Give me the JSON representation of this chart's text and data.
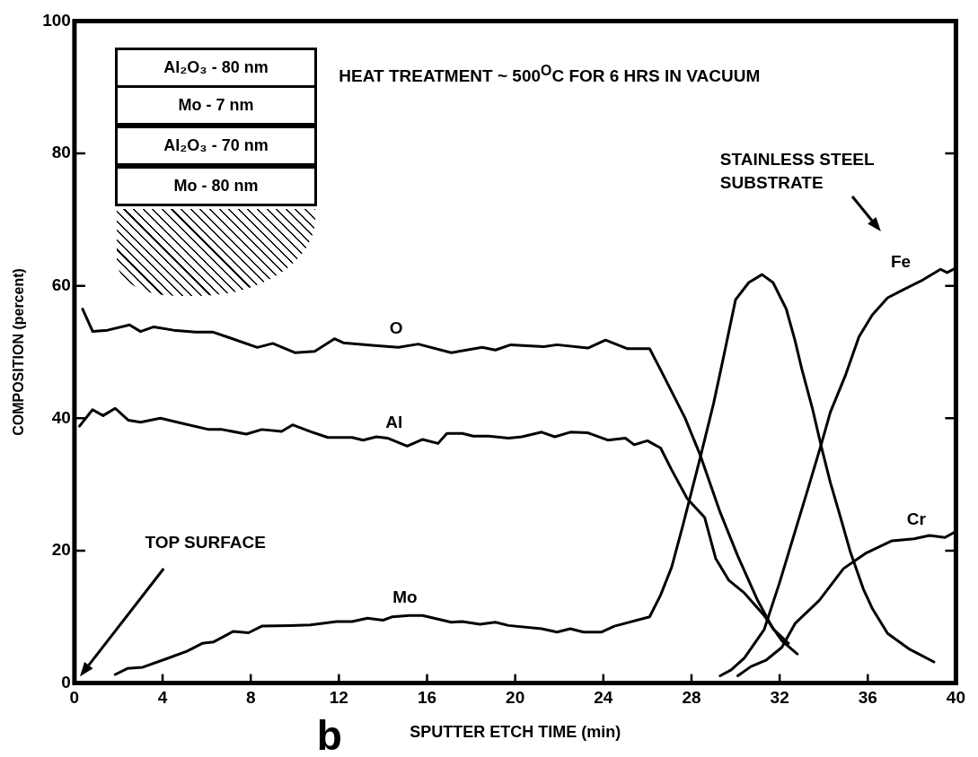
{
  "chart_data": {
    "type": "line",
    "xlabel": "SPUTTER ETCH TIME (min)",
    "ylabel": "COMPOSITION (percent)",
    "xlim": [
      0,
      40
    ],
    "ylim": [
      0,
      100
    ],
    "xticks": [
      0,
      4,
      8,
      12,
      16,
      20,
      24,
      28,
      32,
      36,
      40
    ],
    "yticks": [
      0,
      20,
      40,
      60,
      80,
      100
    ],
    "legend": false,
    "marker": "none",
    "line_style": "solid",
    "annotations": [
      "Al₂O₃ - 80 nm",
      "Mo - 7 nm",
      "Al₂O₃ - 70 nm",
      "Mo - 80 nm",
      "HEAT TREATMENT ~ 500$^{O}$C FOR 6 HRS IN VACUUM",
      "STAINLESS STEEL SUBSTRATE",
      "TOP SURFACE",
      "b"
    ],
    "series": [
      {
        "name": "O",
        "color": "#000000",
        "x": [
          0.37,
          0.83,
          1.5,
          2.5,
          3.0,
          3.6,
          4.5,
          5.5,
          6.3,
          7.0,
          8.3,
          9.0,
          10.0,
          10.9,
          11.8,
          12.2,
          13.5,
          14.7,
          15.6,
          17.1,
          18.5,
          19.1,
          19.8,
          21.3,
          21.9,
          23.3,
          24.1,
          25.1,
          26.1,
          26.6,
          27.7,
          28.4,
          29.3,
          30.1,
          31.0,
          31.7,
          32.4
        ],
        "values": [
          56.5,
          53.1,
          53.3,
          54.1,
          53.1,
          53.8,
          53.3,
          53.0,
          53.0,
          52.2,
          50.7,
          51.3,
          49.9,
          50.1,
          52.0,
          51.4,
          51.0,
          50.7,
          51.2,
          49.9,
          50.7,
          50.3,
          51.1,
          50.8,
          51.1,
          50.6,
          51.8,
          50.5,
          50.5,
          47.3,
          40.1,
          34.4,
          25.8,
          19.2,
          12.5,
          8.2,
          6.0
        ]
      },
      {
        "name": "Al",
        "color": "#000000",
        "x": [
          0.23,
          0.82,
          1.3,
          1.85,
          2.45,
          3.0,
          3.9,
          4.8,
          6.1,
          6.7,
          7.8,
          8.5,
          9.4,
          9.9,
          10.7,
          11.5,
          12.6,
          13.1,
          13.7,
          14.2,
          15.1,
          15.8,
          16.5,
          16.9,
          17.6,
          18.1,
          18.8,
          19.7,
          20.3,
          21.2,
          21.8,
          22.5,
          23.3,
          24.2,
          25.0,
          25.4,
          26.0,
          26.6,
          27.1,
          27.8,
          28.6,
          29.1,
          29.7,
          30.4,
          31.3,
          32.1,
          32.8
        ],
        "values": [
          38.8,
          41.3,
          40.4,
          41.5,
          39.7,
          39.4,
          40.0,
          39.3,
          38.3,
          38.3,
          37.6,
          38.3,
          38.0,
          39.0,
          38.0,
          37.1,
          37.1,
          36.7,
          37.2,
          37.0,
          35.8,
          36.8,
          36.2,
          37.7,
          37.7,
          37.3,
          37.3,
          37.0,
          37.2,
          37.9,
          37.2,
          37.9,
          37.8,
          36.7,
          37.0,
          36.0,
          36.6,
          35.5,
          32.2,
          27.9,
          25.0,
          18.8,
          15.5,
          13.6,
          10.2,
          6.4,
          4.4
        ]
      },
      {
        "name": "Mo",
        "color": "#000000",
        "x": [
          1.85,
          2.4,
          3.1,
          4.2,
          5.1,
          5.8,
          6.3,
          7.2,
          7.9,
          8.5,
          9.8,
          10.7,
          11.9,
          12.6,
          13.3,
          14.0,
          14.4,
          15.2,
          15.8,
          17.1,
          17.6,
          18.4,
          19.1,
          19.7,
          21.2,
          21.9,
          22.5,
          23.1,
          23.9,
          24.5,
          26.1,
          26.6,
          27.1,
          27.6,
          28.4,
          29.0,
          29.4,
          30.0,
          30.6,
          31.2,
          31.7,
          32.3,
          32.7,
          33.0,
          33.5,
          33.9,
          34.3,
          34.8,
          35.2,
          35.8,
          36.2,
          36.9,
          37.9,
          39.0
        ],
        "values": [
          1.3,
          2.2,
          2.4,
          3.7,
          4.8,
          6.0,
          6.2,
          7.8,
          7.6,
          8.6,
          8.7,
          8.8,
          9.3,
          9.3,
          9.8,
          9.5,
          10.0,
          10.2,
          10.2,
          9.2,
          9.3,
          8.9,
          9.2,
          8.7,
          8.2,
          7.7,
          8.2,
          7.7,
          7.7,
          8.6,
          10.0,
          13.3,
          17.5,
          23.7,
          34.1,
          42.2,
          48.4,
          57.9,
          60.5,
          61.7,
          60.5,
          56.5,
          51.7,
          47.5,
          41.3,
          35.6,
          30.3,
          24.6,
          19.9,
          14.2,
          11.3,
          7.5,
          5.1,
          3.2
        ]
      },
      {
        "name": "Fe",
        "color": "#000000",
        "x": [
          29.3,
          29.8,
          30.4,
          31.3,
          32.0,
          32.7,
          33.3,
          33.9,
          34.3,
          35.0,
          35.6,
          36.2,
          36.9,
          37.6,
          38.5,
          39.3,
          39.6,
          40.0
        ],
        "values": [
          1.1,
          2.0,
          3.8,
          8.1,
          15.2,
          22.9,
          29.5,
          36.2,
          40.9,
          46.6,
          52.3,
          55.6,
          58.2,
          59.4,
          60.9,
          62.5,
          62.0,
          62.7
        ]
      },
      {
        "name": "Cr",
        "color": "#000000",
        "x": [
          30.1,
          30.7,
          31.4,
          32.1,
          32.7,
          33.8,
          34.9,
          35.9,
          37.1,
          38.1,
          38.8,
          39.5,
          40.0
        ],
        "values": [
          1.1,
          2.5,
          3.5,
          5.4,
          9.0,
          12.5,
          17.3,
          19.6,
          21.5,
          21.8,
          22.3,
          22.0,
          22.9
        ]
      }
    ]
  }
}
